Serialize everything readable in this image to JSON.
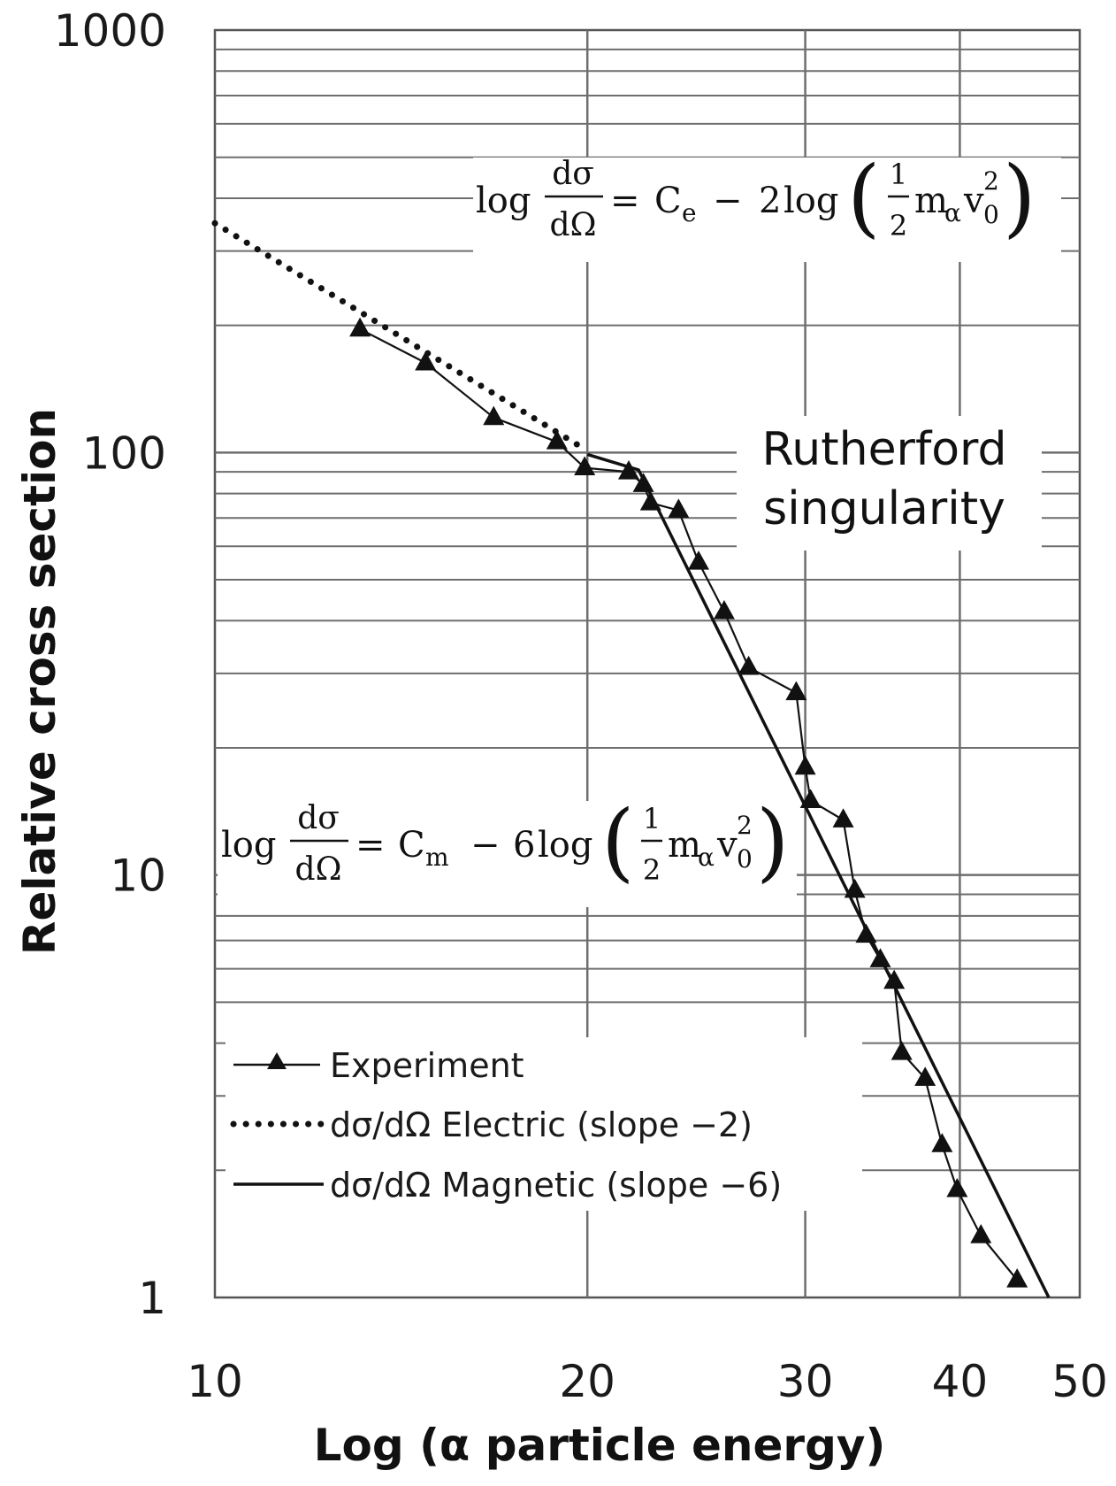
{
  "chart_data": {
    "type": "line",
    "title": "",
    "xlabel": "Log (α particle energy)",
    "ylabel": "Relative cross section",
    "xscale": "log",
    "yscale": "log",
    "xlim": [
      10,
      50
    ],
    "ylim": [
      1,
      1000
    ],
    "x_ticks": [
      10,
      20,
      30,
      40,
      50
    ],
    "x_tick_labels": [
      "10",
      "20",
      "30",
      "40",
      "50"
    ],
    "y_ticks": [
      1,
      10,
      100,
      1000
    ],
    "y_tick_labels": [
      "1",
      "10",
      "100",
      "1000"
    ],
    "grid": true,
    "legend_position": "bottom-left",
    "series": [
      {
        "name": "Experiment",
        "style": "line-with-triangle-markers",
        "color": "#111111",
        "points": [
          [
            13.1,
            196
          ],
          [
            14.8,
            163
          ],
          [
            16.8,
            121
          ],
          [
            18.9,
            106
          ],
          [
            19.9,
            92
          ],
          [
            21.6,
            90
          ],
          [
            22.2,
            84
          ],
          [
            22.5,
            76
          ],
          [
            23.7,
            73
          ],
          [
            24.6,
            55
          ],
          [
            25.8,
            42
          ],
          [
            27.0,
            31
          ],
          [
            29.5,
            27
          ],
          [
            30.0,
            18
          ],
          [
            30.3,
            15
          ],
          [
            32.2,
            13.5
          ],
          [
            32.9,
            9.2
          ],
          [
            33.6,
            7.2
          ],
          [
            34.5,
            6.3
          ],
          [
            35.4,
            5.6
          ],
          [
            35.9,
            3.8
          ],
          [
            37.5,
            3.3
          ],
          [
            38.7,
            2.3
          ],
          [
            39.8,
            1.8
          ],
          [
            41.6,
            1.4
          ],
          [
            44.5,
            1.1
          ]
        ]
      },
      {
        "name": "dσ/dΩ Electric (slope −2)",
        "style": "dotted",
        "color": "#111111",
        "points": [
          [
            10,
            349
          ],
          [
            20,
            101
          ]
        ]
      },
      {
        "name": "dσ/dΩ Magnetic (slope −6)",
        "style": "solid-thick",
        "color": "#111111",
        "points": [
          [
            20,
            99
          ],
          [
            22,
            91
          ],
          [
            47.2,
            1.0
          ]
        ]
      }
    ],
    "annotations": [
      {
        "id": "rutherford",
        "lines": [
          "Rutherford",
          "singularity"
        ]
      }
    ],
    "formulas": {
      "electric": {
        "lhs": "log",
        "numerator": "dσ",
        "denominator": "dΩ",
        "constant": "C",
        "constant_sub": "e",
        "coef": "2",
        "fn": "log",
        "half_num": "1",
        "half_den": "2",
        "m": "m",
        "m_sub": "α",
        "v": "v",
        "v_sub": "0",
        "v_sup": "2"
      },
      "magnetic": {
        "lhs": "log",
        "numerator": "dσ",
        "denominator": "dΩ",
        "constant": "C",
        "constant_sub": "m",
        "coef": "6",
        "fn": "log",
        "half_num": "1",
        "half_den": "2",
        "m": "m",
        "m_sub": "α",
        "v": "v",
        "v_sub": "0",
        "v_sup": "2"
      }
    }
  }
}
